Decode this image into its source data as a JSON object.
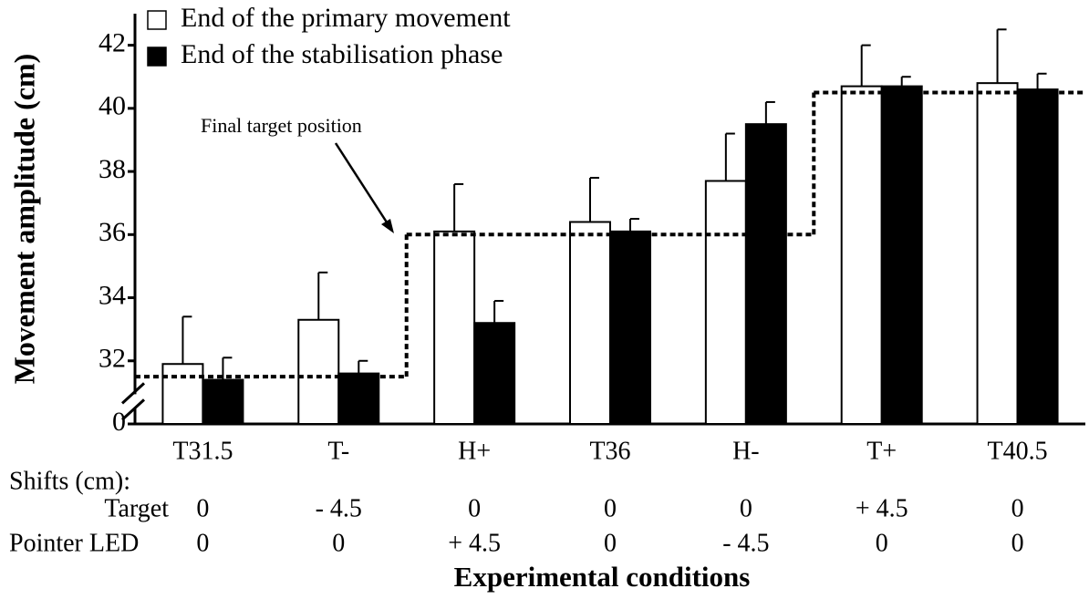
{
  "chart_data": {
    "type": "bar",
    "y_label": "Movement amplitude (cm)",
    "x_label": "Experimental conditions",
    "categories": [
      "T31.5",
      "T-",
      "H+",
      "T36",
      "H-",
      "T+",
      "T40.5"
    ],
    "series": [
      {
        "name": "End of the primary movement",
        "color": "#ffffff",
        "values": [
          31.9,
          33.3,
          36.1,
          36.4,
          37.7,
          40.7,
          40.8
        ],
        "errors": [
          1.5,
          1.5,
          1.5,
          1.4,
          1.5,
          1.3,
          1.7
        ]
      },
      {
        "name": "End of the stabilisation phase",
        "color": "#000000",
        "values": [
          31.4,
          31.6,
          33.2,
          36.1,
          39.5,
          40.7,
          40.6
        ],
        "errors": [
          0.7,
          0.4,
          0.7,
          0.4,
          0.7,
          0.3,
          0.5
        ]
      }
    ],
    "target_line": {
      "name": "Final target position",
      "values": [
        31.5,
        31.5,
        36,
        36,
        36,
        40.5,
        40.5
      ]
    },
    "ylim": [
      30,
      43
    ],
    "yticks": [
      {
        "value": 30,
        "label": "0"
      },
      32,
      34,
      36,
      38,
      40,
      42
    ],
    "shifts": {
      "title": "Shifts (cm):",
      "rows": [
        {
          "label": "Target",
          "values": [
            "0",
            "- 4.5",
            "0",
            "0",
            "0",
            "+ 4.5",
            "0"
          ]
        },
        {
          "label": "Pointer LED",
          "values": [
            "0",
            "0",
            "+ 4.5",
            "0",
            "- 4.5",
            "0",
            "0"
          ]
        }
      ]
    },
    "legend": "top-left"
  }
}
